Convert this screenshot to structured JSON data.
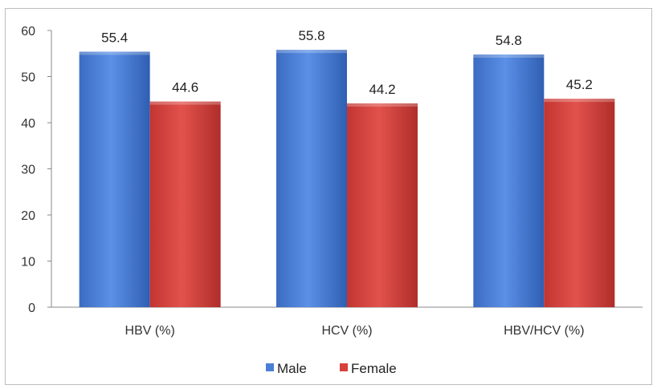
{
  "chart_data": {
    "type": "bar",
    "categories": [
      "HBV (%)",
      "HCV (%)",
      "HBV/HCV (%)"
    ],
    "series": [
      {
        "name": "Male",
        "values": [
          55.4,
          55.8,
          54.8
        ],
        "color": "#4a7fd6"
      },
      {
        "name": "Female",
        "values": [
          44.6,
          44.2,
          45.2
        ],
        "color": "#d6413b"
      }
    ],
    "data_labels": {
      "Male": [
        "55.4",
        "55.8",
        "54.8"
      ],
      "Female": [
        "44.6",
        "44.2",
        "45.2"
      ]
    },
    "yticks": [
      "0",
      "10",
      "20",
      "30",
      "40",
      "50",
      "60"
    ],
    "ylim": [
      0,
      60
    ],
    "grid": false,
    "legend_position": "bottom"
  }
}
